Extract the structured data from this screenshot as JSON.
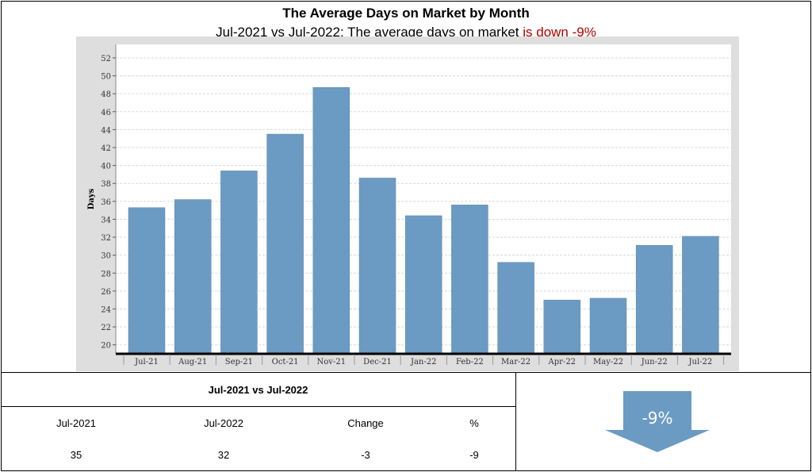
{
  "header": {
    "title": "The Average Days on Market by Month",
    "subtitle_prefix": "Jul-2021 vs Jul-2022: The average days on market ",
    "subtitle_highlight": "is down -9%"
  },
  "chart_data": {
    "type": "bar",
    "categories": [
      "Jul-21",
      "Aug-21",
      "Sep-21",
      "Oct-21",
      "Nov-21",
      "Dec-21",
      "Jan-22",
      "Feb-22",
      "Mar-22",
      "Apr-22",
      "May-22",
      "Jun-22",
      "Jul-22"
    ],
    "values": [
      35.3,
      36.2,
      39.4,
      43.5,
      48.7,
      38.6,
      34.4,
      35.6,
      29.2,
      25.0,
      25.2,
      31.1,
      32.1
    ],
    "xlabel": "",
    "ylabel": "Days",
    "ylim": [
      19,
      53.5
    ],
    "yticks": [
      20,
      22,
      24,
      26,
      28,
      30,
      32,
      34,
      36,
      38,
      40,
      42,
      44,
      46,
      48,
      50,
      52
    ],
    "grid": true,
    "bar_color": "#6b9bc3"
  },
  "summary": {
    "heading": "Jul-2021 vs Jul-2022",
    "columns": [
      "Jul-2021",
      "Jul-2022",
      "Change",
      "%"
    ],
    "values": [
      "35",
      "32",
      "-3",
      "-9"
    ]
  },
  "indicator": {
    "label": "-9%",
    "direction": "down",
    "color": "#6b9bc3"
  }
}
